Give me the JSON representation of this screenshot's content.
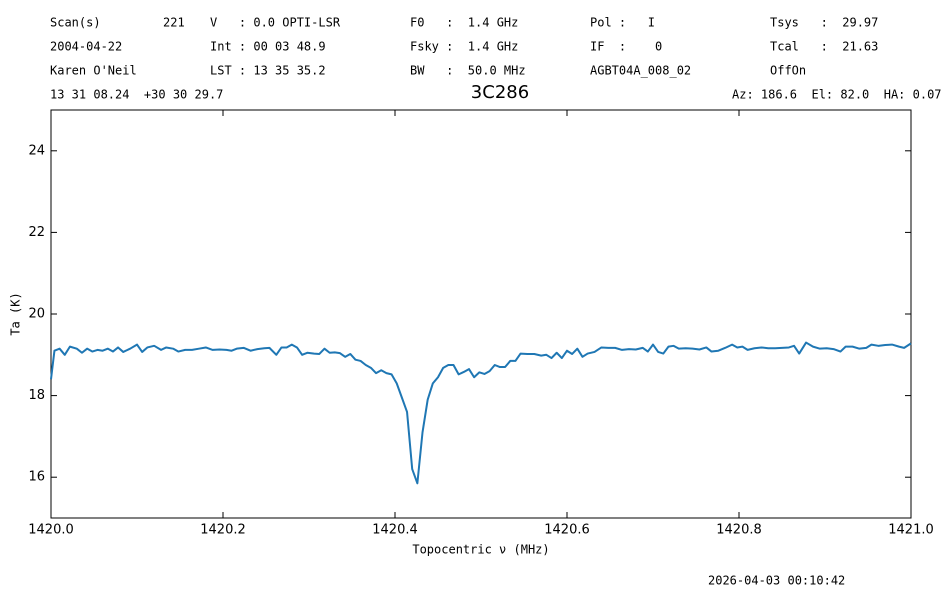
{
  "header": {
    "rows": [
      [
        "Scan(s)",
        "V   : 0.0 OPTI-LSR",
        "F0   :  1.4 GHz",
        "Pol :   I",
        "Tsys   :  29.97"
      ],
      [
        "2004-04-22",
        "Int : 00 03 48.9",
        "Fsky :  1.4 GHz",
        "IF  :    0",
        "Tcal   :  21.63"
      ],
      [
        "Karen O'Neil",
        "LST : 13 35 35.2",
        "BW   :  50.0 MHz",
        "AGBT04A_008_02",
        "OffOn"
      ]
    ],
    "scan": "221",
    "position": "13 31 08.24  +30 30 29.7",
    "pointing": "Az: 186.6  El: 82.0  HA: 0.07",
    "timestamp": "2026-04-03 00:10:42"
  },
  "chart_data": {
    "type": "line",
    "title": "3C286",
    "x_label": "Topocentric ν (MHz)",
    "y_label": "Ta (K)",
    "xlim": [
      1420.0,
      1421.0
    ],
    "ylim": [
      15,
      25
    ],
    "xticks": [
      {
        "value": 1420.0,
        "label": "1420.0"
      },
      1420.2,
      1420.4,
      1420.6,
      1420.8,
      {
        "value": 1421.0,
        "label": "1421.0"
      }
    ],
    "yticks": [
      16,
      18,
      20,
      22,
      24
    ],
    "grid": false,
    "series": [
      {
        "color": "#1f77b4",
        "x": [
          1420.0,
          1420.004,
          1420.01,
          1420.016,
          1420.022,
          1420.03,
          1420.036,
          1420.042,
          1420.048,
          1420.054,
          1420.06,
          1420.066,
          1420.072,
          1420.078,
          1420.084,
          1420.092,
          1420.1,
          1420.106,
          1420.112,
          1420.12,
          1420.128,
          1420.134,
          1420.142,
          1420.148,
          1420.156,
          1420.164,
          1420.172,
          1420.18,
          1420.188,
          1420.196,
          1420.204,
          1420.21,
          1420.216,
          1420.224,
          1420.232,
          1420.24,
          1420.248,
          1420.254,
          1420.262,
          1420.268,
          1420.274,
          1420.28,
          1420.286,
          1420.292,
          1420.298,
          1420.306,
          1420.312,
          1420.318,
          1420.324,
          1420.33,
          1420.336,
          1420.342,
          1420.348,
          1420.354,
          1420.36,
          1420.366,
          1420.372,
          1420.378,
          1420.384,
          1420.39,
          1420.396,
          1420.402,
          1420.408,
          1420.414,
          1420.42,
          1420.426,
          1420.432,
          1420.438,
          1420.444,
          1420.45,
          1420.456,
          1420.462,
          1420.468,
          1420.474,
          1420.48,
          1420.486,
          1420.492,
          1420.498,
          1420.504,
          1420.51,
          1420.516,
          1420.522,
          1420.528,
          1420.534,
          1420.54,
          1420.546,
          1420.554,
          1420.562,
          1420.57,
          1420.576,
          1420.582,
          1420.588,
          1420.594,
          1420.6,
          1420.606,
          1420.612,
          1420.618,
          1420.624,
          1420.632,
          1420.64,
          1420.648,
          1420.656,
          1420.664,
          1420.672,
          1420.68,
          1420.688,
          1420.694,
          1420.7,
          1420.706,
          1420.712,
          1420.718,
          1420.724,
          1420.73,
          1420.738,
          1420.746,
          1420.754,
          1420.762,
          1420.768,
          1420.776,
          1420.784,
          1420.792,
          1420.798,
          1420.804,
          1420.81,
          1420.818,
          1420.826,
          1420.834,
          1420.842,
          1420.85,
          1420.858,
          1420.864,
          1420.87,
          1420.878,
          1420.886,
          1420.894,
          1420.902,
          1420.91,
          1420.918,
          1420.924,
          1420.932,
          1420.94,
          1420.948,
          1420.954,
          1420.962,
          1420.97,
          1420.978,
          1420.986,
          1420.992,
          1421.0
        ],
        "values": [
          18.4,
          19.1,
          19.15,
          19.0,
          19.2,
          19.15,
          19.05,
          19.15,
          19.08,
          19.12,
          19.1,
          19.15,
          19.08,
          19.18,
          19.07,
          19.15,
          19.25,
          19.07,
          19.18,
          19.22,
          19.12,
          19.18,
          19.15,
          19.08,
          19.12,
          19.12,
          19.15,
          19.18,
          19.12,
          19.13,
          19.12,
          19.1,
          19.15,
          19.17,
          19.1,
          19.14,
          19.16,
          19.17,
          19.0,
          19.18,
          19.18,
          19.25,
          19.18,
          19.0,
          19.05,
          19.03,
          19.02,
          19.15,
          19.05,
          19.06,
          19.04,
          18.95,
          19.02,
          18.88,
          18.85,
          18.75,
          18.68,
          18.55,
          18.62,
          18.55,
          18.52,
          18.3,
          17.95,
          17.6,
          16.2,
          15.85,
          17.1,
          17.9,
          18.3,
          18.45,
          18.68,
          18.75,
          18.75,
          18.52,
          18.58,
          18.65,
          18.45,
          18.57,
          18.53,
          18.6,
          18.75,
          18.7,
          18.7,
          18.85,
          18.85,
          19.03,
          19.02,
          19.02,
          18.98,
          19.0,
          18.92,
          19.05,
          18.92,
          19.1,
          19.02,
          19.15,
          18.95,
          19.03,
          19.07,
          19.18,
          19.17,
          19.17,
          19.12,
          19.14,
          19.13,
          19.17,
          19.08,
          19.25,
          19.07,
          19.03,
          19.2,
          19.22,
          19.15,
          19.16,
          19.15,
          19.13,
          19.18,
          19.08,
          19.1,
          19.17,
          19.25,
          19.18,
          19.2,
          19.12,
          19.16,
          19.18,
          19.16,
          19.16,
          19.17,
          19.18,
          19.22,
          19.03,
          19.3,
          19.2,
          19.15,
          19.16,
          19.14,
          19.08,
          19.2,
          19.2,
          19.15,
          19.17,
          19.25,
          19.22,
          19.24,
          19.25,
          19.2,
          19.17,
          19.28
        ]
      }
    ]
  }
}
